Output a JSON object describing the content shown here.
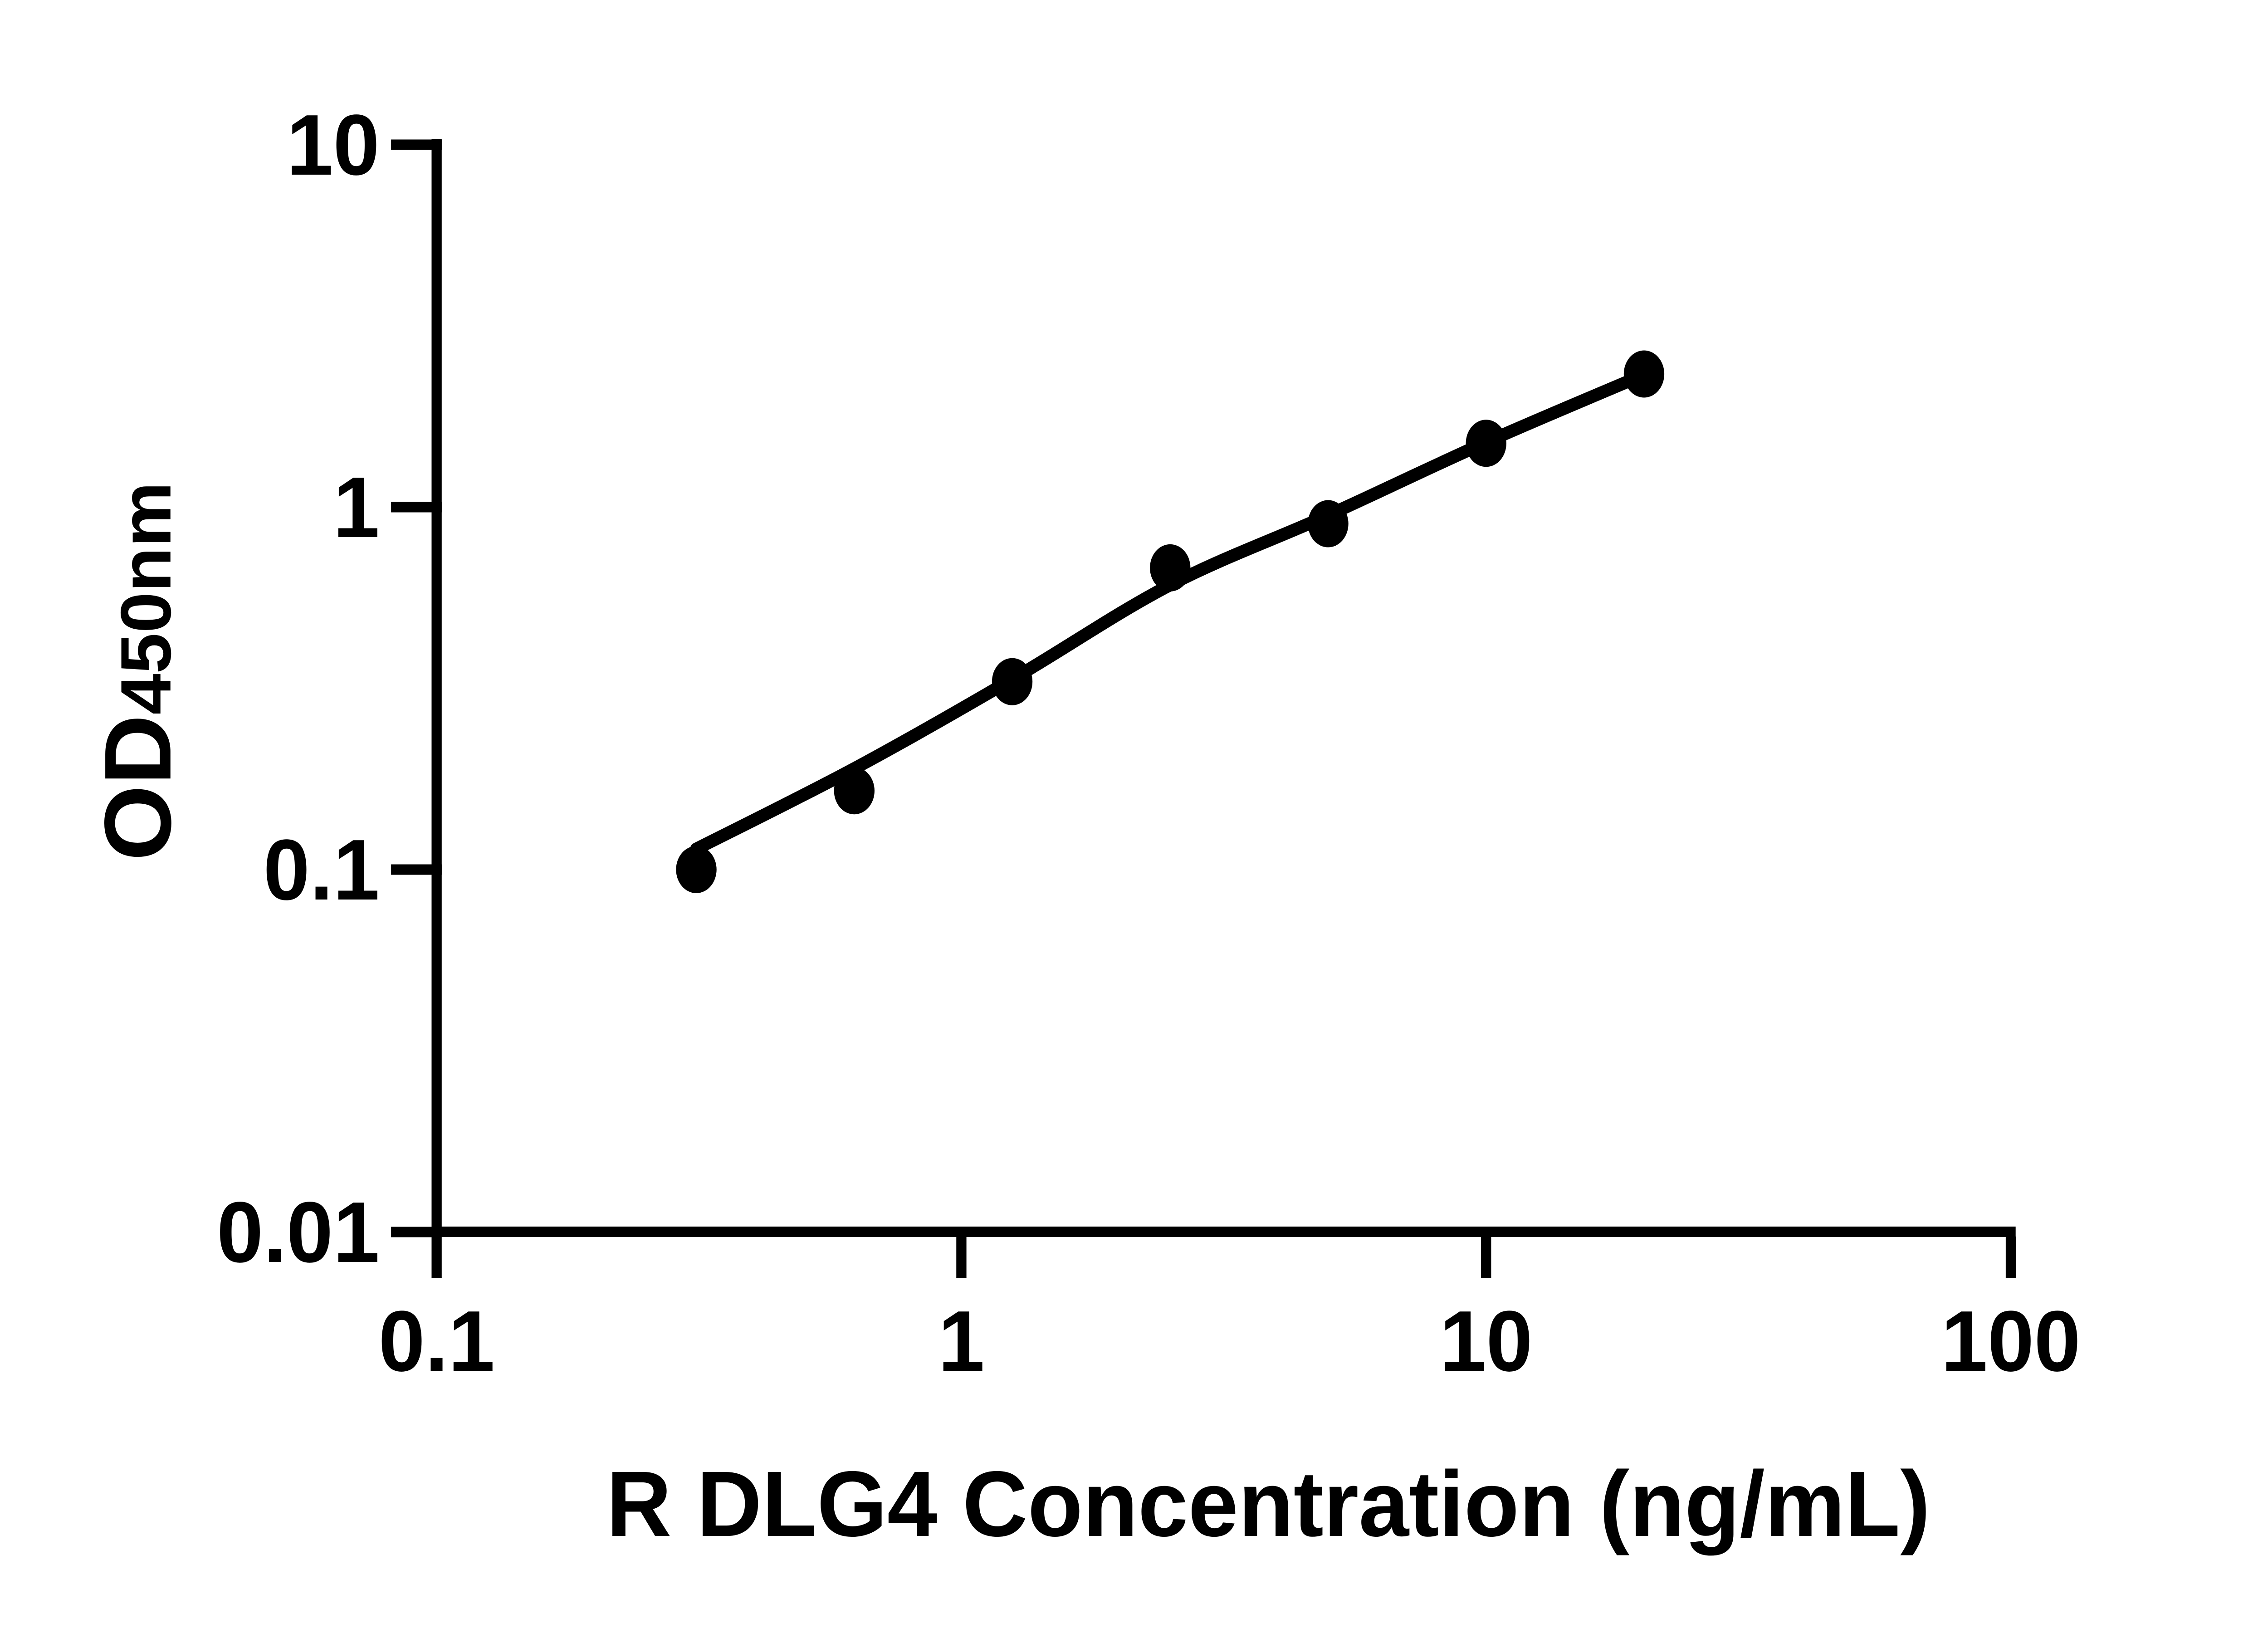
{
  "figure": {
    "background_color": "#ffffff",
    "ink_color": "#000000"
  },
  "chart_data": {
    "type": "scatter",
    "title": "",
    "xlabel": "R DLG4 Concentration (ng/mL)",
    "ylabel_main": "OD",
    "ylabel_sub": "450nm",
    "x_scale": "log10",
    "y_scale": "log10",
    "xlim": [
      0.1,
      100
    ],
    "ylim": [
      0.01,
      10
    ],
    "grid": false,
    "legend_position": "none",
    "x_ticks": {
      "values": [
        0.1,
        1,
        10,
        100
      ],
      "labels": [
        "0.1",
        "1",
        "10",
        "100"
      ]
    },
    "y_ticks": {
      "values": [
        0.01,
        0.1,
        1,
        10
      ],
      "labels": [
        "0.01",
        "0.1",
        "1",
        "10"
      ]
    },
    "series": [
      {
        "name": "standard-points",
        "marker": "filled-circle",
        "color": "#000000",
        "x": [
          0.3125,
          0.625,
          1.25,
          2.5,
          5,
          10,
          20
        ],
        "y": [
          0.1,
          0.165,
          0.33,
          0.68,
          0.9,
          1.5,
          2.33
        ]
      }
    ],
    "fit_line": {
      "name": "fitted-standard-curve",
      "color": "#000000",
      "x": [
        0.3125,
        0.625,
        1.25,
        2.5,
        5,
        10,
        20
      ],
      "y": [
        0.114,
        0.19,
        0.335,
        0.61,
        0.95,
        1.51,
        2.32
      ]
    }
  }
}
